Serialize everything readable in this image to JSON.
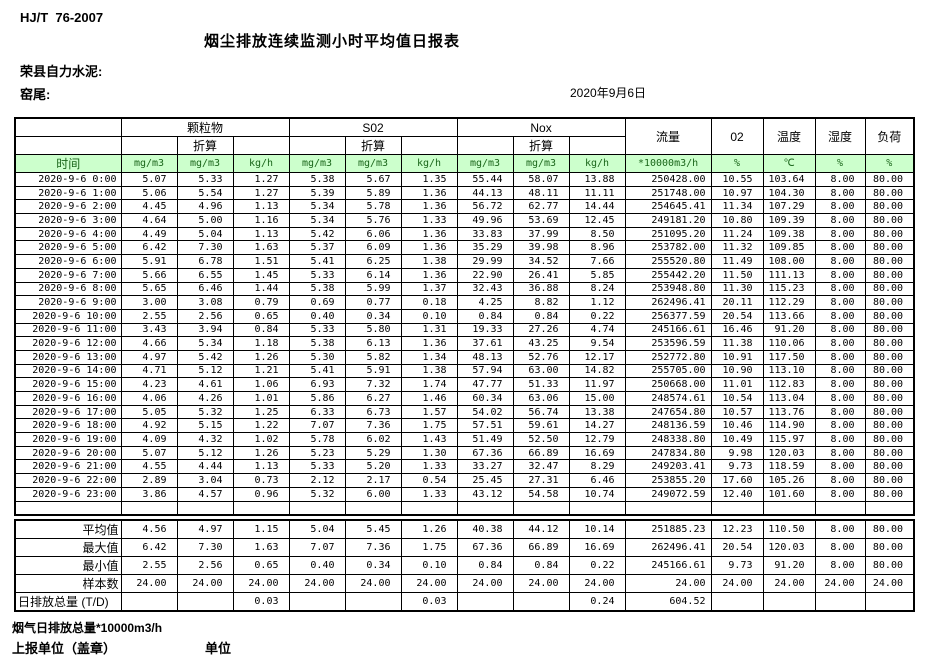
{
  "page": {
    "standard_no": "HJ/T  76-2007",
    "title": "烟尘排放连续监测小时平均值日报表",
    "company": "荣县自力水泥:",
    "location": "窑尾:",
    "date": "2020年9月6日",
    "footnote": "烟气日排放总量*10000m3/h",
    "report_unit_label": "上报单位（盖章）",
    "unit_label": "单位"
  },
  "colors": {
    "header_bg": "#ccffcc",
    "header_text": "#1a661a",
    "border": "#000000"
  },
  "table": {
    "time_label": "时间",
    "groups": [
      "颗粒物",
      "S02",
      "Nox"
    ],
    "converted_label": "折算",
    "flow_label": "流量",
    "o2_label": "02",
    "temp_label": "温度",
    "humidity_label": "湿度",
    "load_label": "负荷",
    "units": [
      "mg/m3",
      "mg/m3",
      "kg/h",
      "mg/m3",
      "mg/m3",
      "kg/h",
      "mg/m3",
      "mg/m3",
      "kg/h",
      "*10000m3/h",
      "%",
      "℃",
      "%",
      "%"
    ],
    "rows": [
      {
        "time": "2020-9-6 0:00",
        "values": [
          "5.07",
          "5.33",
          "1.27",
          "5.38",
          "5.67",
          "1.35",
          "55.44",
          "58.07",
          "13.88",
          "250428.00",
          "10.55",
          "103.64",
          "8.00",
          "80.00"
        ]
      },
      {
        "time": "2020-9-6 1:00",
        "values": [
          "5.06",
          "5.54",
          "1.27",
          "5.39",
          "5.89",
          "1.36",
          "44.13",
          "48.11",
          "11.11",
          "251748.00",
          "10.97",
          "104.30",
          "8.00",
          "80.00"
        ]
      },
      {
        "time": "2020-9-6 2:00",
        "values": [
          "4.45",
          "4.96",
          "1.13",
          "5.34",
          "5.78",
          "1.36",
          "56.72",
          "62.77",
          "14.44",
          "254645.41",
          "11.34",
          "107.29",
          "8.00",
          "80.00"
        ]
      },
      {
        "time": "2020-9-6 3:00",
        "values": [
          "4.64",
          "5.00",
          "1.16",
          "5.34",
          "5.76",
          "1.33",
          "49.96",
          "53.69",
          "12.45",
          "249181.20",
          "10.80",
          "109.39",
          "8.00",
          "80.00"
        ]
      },
      {
        "time": "2020-9-6 4:00",
        "values": [
          "4.49",
          "5.04",
          "1.13",
          "5.42",
          "6.06",
          "1.36",
          "33.83",
          "37.99",
          "8.50",
          "251095.20",
          "11.24",
          "109.38",
          "8.00",
          "80.00"
        ]
      },
      {
        "time": "2020-9-6 5:00",
        "values": [
          "6.42",
          "7.30",
          "1.63",
          "5.37",
          "6.09",
          "1.36",
          "35.29",
          "39.98",
          "8.96",
          "253782.00",
          "11.32",
          "109.85",
          "8.00",
          "80.00"
        ]
      },
      {
        "time": "2020-9-6 6:00",
        "values": [
          "5.91",
          "6.78",
          "1.51",
          "5.41",
          "6.25",
          "1.38",
          "29.99",
          "34.52",
          "7.66",
          "255520.80",
          "11.49",
          "108.00",
          "8.00",
          "80.00"
        ]
      },
      {
        "time": "2020-9-6 7:00",
        "values": [
          "5.66",
          "6.55",
          "1.45",
          "5.33",
          "6.14",
          "1.36",
          "22.90",
          "26.41",
          "5.85",
          "255442.20",
          "11.50",
          "111.13",
          "8.00",
          "80.00"
        ]
      },
      {
        "time": "2020-9-6 8:00",
        "values": [
          "5.65",
          "6.46",
          "1.44",
          "5.38",
          "5.99",
          "1.37",
          "32.43",
          "36.88",
          "8.24",
          "253948.80",
          "11.30",
          "115.23",
          "8.00",
          "80.00"
        ]
      },
      {
        "time": "2020-9-6 9:00",
        "values": [
          "3.00",
          "3.08",
          "0.79",
          "0.69",
          "0.77",
          "0.18",
          "4.25",
          "8.82",
          "1.12",
          "262496.41",
          "20.11",
          "112.29",
          "8.00",
          "80.00"
        ]
      },
      {
        "time": "2020-9-6 10:00",
        "values": [
          "2.55",
          "2.56",
          "0.65",
          "0.40",
          "0.34",
          "0.10",
          "0.84",
          "0.84",
          "0.22",
          "256377.59",
          "20.54",
          "113.66",
          "8.00",
          "80.00"
        ]
      },
      {
        "time": "2020-9-6 11:00",
        "values": [
          "3.43",
          "3.94",
          "0.84",
          "5.33",
          "5.80",
          "1.31",
          "19.33",
          "27.26",
          "4.74",
          "245166.61",
          "16.46",
          "91.20",
          "8.00",
          "80.00"
        ]
      },
      {
        "time": "2020-9-6 12:00",
        "values": [
          "4.66",
          "5.34",
          "1.18",
          "5.38",
          "6.13",
          "1.36",
          "37.61",
          "43.25",
          "9.54",
          "253596.59",
          "11.38",
          "110.06",
          "8.00",
          "80.00"
        ]
      },
      {
        "time": "2020-9-6 13:00",
        "values": [
          "4.97",
          "5.42",
          "1.26",
          "5.30",
          "5.82",
          "1.34",
          "48.13",
          "52.76",
          "12.17",
          "252772.80",
          "10.91",
          "117.50",
          "8.00",
          "80.00"
        ]
      },
      {
        "time": "2020-9-6 14:00",
        "values": [
          "4.71",
          "5.12",
          "1.21",
          "5.41",
          "5.91",
          "1.38",
          "57.94",
          "63.00",
          "14.82",
          "255705.00",
          "10.90",
          "113.10",
          "8.00",
          "80.00"
        ]
      },
      {
        "time": "2020-9-6 15:00",
        "values": [
          "4.23",
          "4.61",
          "1.06",
          "6.93",
          "7.32",
          "1.74",
          "47.77",
          "51.33",
          "11.97",
          "250668.00",
          "11.01",
          "112.83",
          "8.00",
          "80.00"
        ]
      },
      {
        "time": "2020-9-6 16:00",
        "values": [
          "4.06",
          "4.26",
          "1.01",
          "5.86",
          "6.27",
          "1.46",
          "60.34",
          "63.06",
          "15.00",
          "248574.61",
          "10.54",
          "113.04",
          "8.00",
          "80.00"
        ]
      },
      {
        "time": "2020-9-6 17:00",
        "values": [
          "5.05",
          "5.32",
          "1.25",
          "6.33",
          "6.73",
          "1.57",
          "54.02",
          "56.74",
          "13.38",
          "247654.80",
          "10.57",
          "113.76",
          "8.00",
          "80.00"
        ]
      },
      {
        "time": "2020-9-6 18:00",
        "values": [
          "4.92",
          "5.15",
          "1.22",
          "7.07",
          "7.36",
          "1.75",
          "57.51",
          "59.61",
          "14.27",
          "248136.59",
          "10.46",
          "114.90",
          "8.00",
          "80.00"
        ]
      },
      {
        "time": "2020-9-6 19:00",
        "values": [
          "4.09",
          "4.32",
          "1.02",
          "5.78",
          "6.02",
          "1.43",
          "51.49",
          "52.50",
          "12.79",
          "248338.80",
          "10.49",
          "115.97",
          "8.00",
          "80.00"
        ]
      },
      {
        "time": "2020-9-6 20:00",
        "values": [
          "5.07",
          "5.12",
          "1.26",
          "5.23",
          "5.29",
          "1.30",
          "67.36",
          "66.89",
          "16.69",
          "247834.80",
          "9.98",
          "120.03",
          "8.00",
          "80.00"
        ]
      },
      {
        "time": "2020-9-6 21:00",
        "values": [
          "4.55",
          "4.44",
          "1.13",
          "5.33",
          "5.20",
          "1.33",
          "33.27",
          "32.47",
          "8.29",
          "249203.41",
          "9.73",
          "118.59",
          "8.00",
          "80.00"
        ]
      },
      {
        "time": "2020-9-6 22:00",
        "values": [
          "2.89",
          "3.04",
          "0.73",
          "2.12",
          "2.17",
          "0.54",
          "25.45",
          "27.31",
          "6.46",
          "253855.20",
          "17.60",
          "105.26",
          "8.00",
          "80.00"
        ]
      },
      {
        "time": "2020-9-6 23:00",
        "values": [
          "3.86",
          "4.57",
          "0.96",
          "5.32",
          "6.00",
          "1.33",
          "43.12",
          "54.58",
          "10.74",
          "249072.59",
          "12.40",
          "101.60",
          "8.00",
          "80.00"
        ]
      }
    ],
    "summary": [
      {
        "label": "平均值",
        "values": [
          "4.56",
          "4.97",
          "1.15",
          "5.04",
          "5.45",
          "1.26",
          "40.38",
          "44.12",
          "10.14",
          "251885.23",
          "12.23",
          "110.50",
          "8.00",
          "80.00"
        ]
      },
      {
        "label": "最大值",
        "values": [
          "6.42",
          "7.30",
          "1.63",
          "7.07",
          "7.36",
          "1.75",
          "67.36",
          "66.89",
          "16.69",
          "262496.41",
          "20.54",
          "120.03",
          "8.00",
          "80.00"
        ]
      },
      {
        "label": "最小值",
        "values": [
          "2.55",
          "2.56",
          "0.65",
          "0.40",
          "0.34",
          "0.10",
          "0.84",
          "0.84",
          "0.22",
          "245166.61",
          "9.73",
          "91.20",
          "8.00",
          "80.00"
        ]
      },
      {
        "label": "样本数",
        "values": [
          "24.00",
          "24.00",
          "24.00",
          "24.00",
          "24.00",
          "24.00",
          "24.00",
          "24.00",
          "24.00",
          "24.00",
          "24.00",
          "24.00",
          "24.00",
          "24.00"
        ]
      }
    ],
    "daily_total": {
      "label": "日排放总量 (T/D)",
      "values": [
        "",
        "",
        "0.03",
        "",
        "",
        "0.03",
        "",
        "",
        "0.24",
        "604.52",
        "",
        "",
        "",
        ""
      ]
    }
  }
}
